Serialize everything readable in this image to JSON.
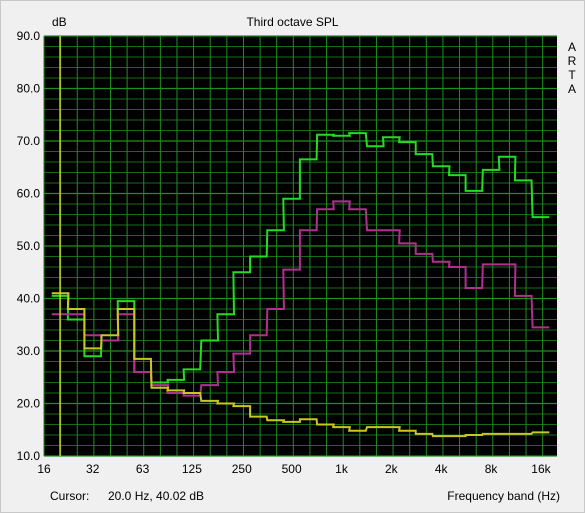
{
  "chart_data": {
    "type": "line",
    "title": "Third octave SPL",
    "ylabel": "dB",
    "xlabel": "Frequency band (Hz)",
    "x_scale": "log",
    "xlim": [
      16,
      20000
    ],
    "ylim": [
      10,
      90
    ],
    "grid": true,
    "x_ticks": [
      "16",
      "32",
      "63",
      "125",
      "250",
      "500",
      "1k",
      "2k",
      "4k",
      "8k",
      "16k"
    ],
    "y_ticks": [
      "10.0",
      "20.0",
      "30.0",
      "40.0",
      "50.0",
      "60.0",
      "70.0",
      "80.0",
      "90.0"
    ],
    "bands_hz": [
      20,
      25,
      31.5,
      40,
      50,
      63,
      80,
      100,
      125,
      160,
      200,
      250,
      315,
      400,
      500,
      630,
      800,
      1000,
      1250,
      1600,
      2000,
      2500,
      3150,
      4000,
      5000,
      6300,
      8000,
      10000,
      12500,
      16000
    ],
    "series": [
      {
        "color": "#22dd22",
        "values": [
          40.5,
          36,
          29,
          32,
          39.5,
          26,
          24,
          24.5,
          26.5,
          32,
          37,
          45,
          48,
          53,
          59,
          66.5,
          71.2,
          71,
          71.5,
          69,
          70.7,
          69.8,
          67.5,
          65.2,
          63.5,
          60.5,
          64.5,
          67,
          62.5,
          55.5
        ]
      },
      {
        "color": "#b03090",
        "values": [
          37,
          37,
          33,
          32,
          37,
          26,
          23.5,
          22,
          21.5,
          23.5,
          26,
          29.5,
          33,
          38,
          45.5,
          53,
          57,
          58.5,
          57,
          53,
          53,
          50.5,
          48.5,
          47,
          46,
          42,
          46.5,
          46.5,
          40.5,
          34.5
        ]
      },
      {
        "color": "#c8c820",
        "values": [
          41,
          38,
          30.5,
          33,
          38,
          28.5,
          23,
          22.5,
          22,
          20.5,
          20,
          19.5,
          17.5,
          16.8,
          16.5,
          17,
          16,
          15.5,
          14.8,
          15.5,
          15.5,
          14.8,
          14.2,
          13.8,
          13.8,
          14,
          14.2,
          14.2,
          14.2,
          14.5
        ]
      }
    ],
    "cursor": {
      "freq_hz": 20
    },
    "brand_text": "ARTA",
    "colors": {
      "background": "#000000",
      "grid": "#1f8f1f",
      "cursor": "#d0d020"
    }
  },
  "cursor_readout": {
    "label": "Cursor:",
    "value": "20.0 Hz, 40.02 dB"
  }
}
